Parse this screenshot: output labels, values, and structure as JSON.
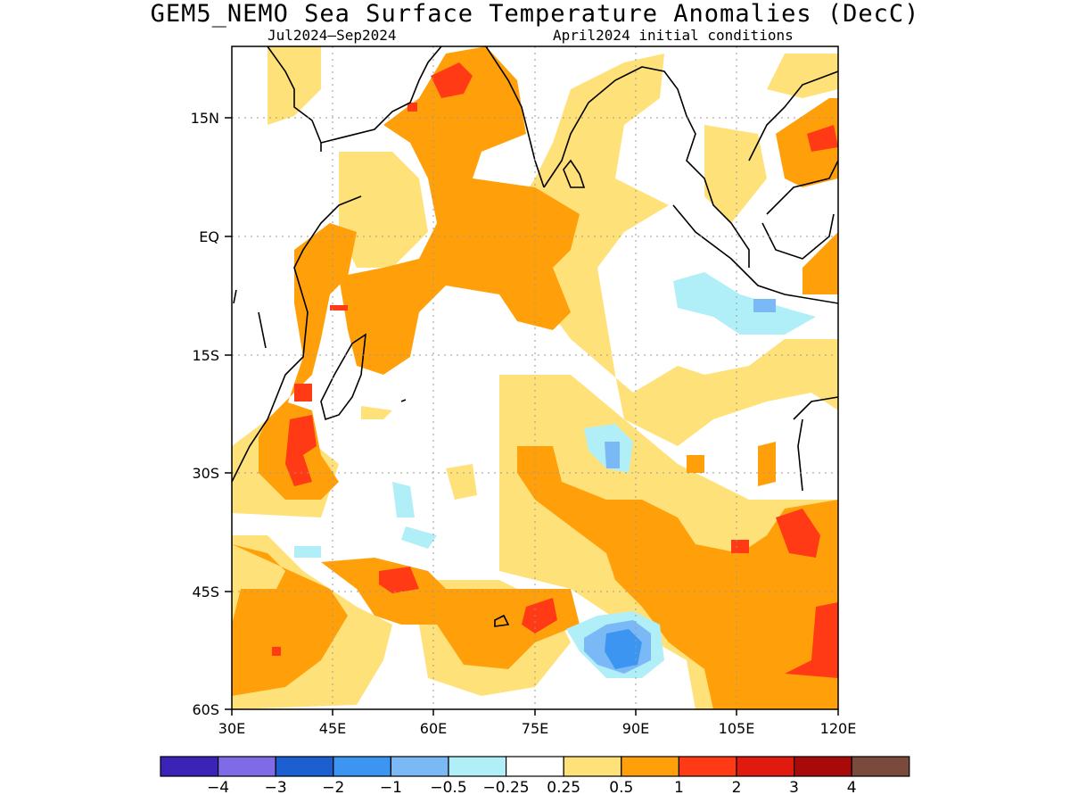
{
  "title": "GEM5_NEMO Sea Surface Temperature Anomalies (DecC)",
  "subtitle_left": "Jul2024—Sep2024",
  "subtitle_right": "April2024 initial conditions",
  "map": {
    "lon_range": [
      30,
      120
    ],
    "lat_range": [
      -60,
      25
    ],
    "lon_ticks": [
      "30E",
      "45E",
      "60E",
      "75E",
      "90E",
      "105E",
      "120E"
    ],
    "lat_ticks": [
      "15N",
      "EQ",
      "15S",
      "30S",
      "45S",
      "60S"
    ],
    "grid": true
  },
  "colorbar": {
    "colors": [
      "#3a23b6",
      "#7f6be6",
      "#1b5fd0",
      "#3c96f1",
      "#7ab8f6",
      "#b0eef8",
      "#ffffff",
      "#ffe17a",
      "#ffa00a",
      "#ff3a14",
      "#e11a0f",
      "#a80a0a",
      "#7a4b3c"
    ],
    "labels": [
      "−4",
      "−3",
      "−2",
      "−1",
      "−0.5",
      "−0.25",
      "0.25",
      "0.5",
      "1",
      "2",
      "3",
      "4"
    ]
  },
  "anomaly_colors": {
    "pale_yellow": "#ffe17a",
    "orange": "#ffa00a",
    "red": "#ff3a14",
    "light_cyan": "#b0eef8",
    "light_blue": "#7ab8f6",
    "blue": "#3c96f1"
  }
}
